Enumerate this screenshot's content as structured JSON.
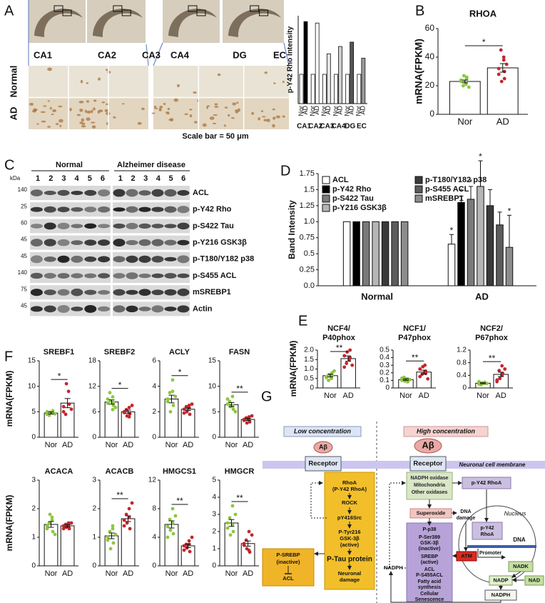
{
  "panel_labels": [
    "A",
    "B",
    "C",
    "D",
    "E",
    "F",
    "G"
  ],
  "histology": {
    "regions": [
      "CA1",
      "CA2",
      "CA3",
      "CA4",
      "DG",
      "EC"
    ],
    "conditions": [
      "Normal",
      "AD"
    ],
    "scale_bar": "Scale bar = 50 μm"
  },
  "blot": {
    "kda": "kDa",
    "groups": [
      "Normal",
      "Alzheimer disease"
    ],
    "lanes": [
      1,
      2,
      3,
      4,
      5,
      6
    ],
    "markers": [
      140,
      25,
      60,
      45,
      45,
      140,
      75,
      45
    ],
    "proteins": [
      "ACL",
      "p-Y42 Rho",
      "p-S422 Tau",
      "p-Y216 GSK3β",
      "p-T180/Y182 p38",
      "p-S455 ACL",
      "mSREBP1",
      "Actin"
    ]
  },
  "chart_data": [
    {
      "type": "grouped_bar",
      "ylabel": "p-Y42 Rho Intensity",
      "categories": [
        "CA1",
        "CA2",
        "CA3",
        "CA4",
        "DG",
        "EC"
      ],
      "ylim": [
        0,
        3
      ],
      "series": [
        {
          "name": "Nor",
          "color": "#ffffff",
          "values": [
            1,
            1,
            1,
            1,
            1,
            1
          ]
        },
        {
          "name": "AD",
          "colors": [
            "#000000",
            "#ffffff",
            "#e6e6e6",
            "#cfcfcf",
            "#555555",
            "#9a9a9a"
          ],
          "values": [
            2.8,
            2.75,
            1.7,
            1.95,
            2.1,
            1.55
          ]
        }
      ]
    },
    {
      "type": "bar_scatter",
      "title": [
        "RHOA"
      ],
      "ylabel": "mRNA(FPKM)",
      "categories": [
        "Nor",
        "AD"
      ],
      "values": [
        23,
        32.5
      ],
      "errors": [
        1.0,
        3.0
      ],
      "sig": "*",
      "ylim": [
        0,
        60
      ],
      "yticks": [
        0,
        20,
        40,
        60
      ],
      "point_colors": [
        "#8dc63f",
        "#c1272d"
      ],
      "points": [
        [
          23,
          22,
          25,
          20,
          27,
          19,
          24,
          21,
          26
        ],
        [
          32,
          40,
          25,
          45,
          23,
          35,
          28,
          38,
          30
        ]
      ]
    },
    {
      "type": "legend_bar",
      "ylabel": "Band Intensity",
      "categories": [
        "Normal",
        "AD"
      ],
      "ylim": [
        0,
        1.75
      ],
      "yticks": [
        {
          "value": 0,
          "label": "0.0"
        },
        0.25,
        0.5,
        0.75,
        {
          "value": 1,
          "label": "1.0"
        },
        1.25,
        1.5,
        1.75
      ],
      "series": [
        {
          "name": "ACL",
          "color": "#ffffff",
          "values": [
            1,
            0.65
          ],
          "errors": [
            null,
            0.15
          ],
          "sig": "*"
        },
        {
          "name": "p-Y42 Rho",
          "color": "#000000",
          "values": [
            1,
            1.3
          ],
          "errors": [
            null,
            0.1
          ],
          "sig": "*"
        },
        {
          "name": "p-S422 Tau",
          "color": "#7a7a7a",
          "values": [
            1,
            1.35
          ],
          "errors": [
            null,
            0.2
          ],
          "sig": "*"
        },
        {
          "name": "p-Y216 GSK3β",
          "color": "#b5b5b5",
          "values": [
            1,
            1.55
          ],
          "errors": [
            null,
            0.4
          ],
          "sig": "*"
        },
        {
          "name": "p-T180/Y182 p38",
          "color": "#3a3a3a",
          "values": [
            1,
            1.25
          ],
          "errors": [
            null,
            0.25
          ]
        },
        {
          "name": "p-S455 ACL",
          "color": "#5c5c5c",
          "values": [
            1,
            0.95
          ],
          "errors": [
            null,
            0.2
          ]
        },
        {
          "name": "mSREBP1",
          "color": "#8c8c8c",
          "values": [
            1,
            0.6
          ],
          "errors": [
            null,
            0.5
          ],
          "sig": "*"
        }
      ]
    },
    {
      "type": "bar_scatter",
      "title": [
        "NCF4/",
        "P40phox"
      ],
      "ylabel": "mRNA(FPKM)",
      "categories": [
        "Nor",
        "AD"
      ],
      "values": [
        0.65,
        1.55
      ],
      "errors": [
        0.07,
        0.14
      ],
      "sig": "**",
      "ylim": [
        0,
        2
      ],
      "yticks": [
        0,
        0.5,
        {
          "value": 1,
          "label": "1.0"
        },
        1.5,
        {
          "value": 2,
          "label": "2.0"
        }
      ],
      "point_colors": [
        "#8dc63f",
        "#c1272d"
      ],
      "points": [
        [
          0.6,
          0.5,
          0.8,
          0.4,
          0.7,
          0.9,
          0.55,
          0.75,
          0.65
        ],
        [
          1.1,
          1.6,
          2.0,
          1.3,
          1.9,
          1.2,
          1.7,
          1.5,
          1.6
        ]
      ]
    },
    {
      "type": "bar_scatter",
      "title": [
        "NCF1/",
        "P47phox"
      ],
      "categories": [
        "Nor",
        "AD"
      ],
      "values": [
        0.11,
        0.21
      ],
      "errors": [
        0.01,
        0.025
      ],
      "sig": "**",
      "ylim": [
        0,
        0.5
      ],
      "yticks": [
        0,
        0.1,
        0.2,
        0.3,
        0.4,
        0.5
      ],
      "point_colors": [
        "#8dc63f",
        "#c1272d"
      ],
      "points": [
        [
          0.1,
          0.12,
          0.08,
          0.14,
          0.09,
          0.11,
          0.13,
          0.1,
          0.12
        ],
        [
          0.15,
          0.3,
          0.22,
          0.18,
          0.28,
          0.12,
          0.25,
          0.2,
          0.19
        ]
      ]
    },
    {
      "type": "bar_scatter",
      "title": [
        "NCF2/",
        "P67phox"
      ],
      "categories": [
        "Nor",
        "AD"
      ],
      "values": [
        0.15,
        0.43
      ],
      "errors": [
        0.015,
        0.07
      ],
      "sig": "**",
      "ylim": [
        0,
        1.2
      ],
      "yticks": [
        0,
        0.4,
        0.8,
        1.2
      ],
      "point_colors": [
        "#8dc63f",
        "#c1272d"
      ],
      "points": [
        [
          0.12,
          0.15,
          0.18,
          0.1,
          0.16,
          0.14,
          0.2,
          0.15
        ],
        [
          0.2,
          0.7,
          0.45,
          0.55,
          0.3,
          0.6,
          0.25,
          0.4
        ]
      ]
    },
    {
      "type": "bar_scatter",
      "title": [
        "SREBF1"
      ],
      "ylabel": "mRNA(FPKM)",
      "categories": [
        "Nor",
        "AD"
      ],
      "values": [
        4.75,
        6.7
      ],
      "errors": [
        0.2,
        0.9
      ],
      "sig": "*",
      "ylim": [
        0,
        15
      ],
      "yticks": [
        0,
        5,
        10,
        15
      ],
      "point_colors": [
        "#8dc63f",
        "#c1272d"
      ],
      "points": [
        [
          4.5,
          4.8,
          5.2,
          4.3,
          4.9,
          4.6,
          5.0
        ],
        [
          5.0,
          9.0,
          6.5,
          4.5,
          10.5,
          5.5,
          6.0
        ]
      ]
    },
    {
      "type": "bar_scatter",
      "title": [
        "SREBF2"
      ],
      "categories": [
        "Nor",
        "AD"
      ],
      "values": [
        8.3,
        6.0
      ],
      "errors": [
        0.5,
        0.4
      ],
      "sig": "*",
      "ylim": [
        0,
        18
      ],
      "yticks": [
        0,
        6,
        12,
        18
      ],
      "point_colors": [
        "#8dc63f",
        "#c1272d"
      ],
      "points": [
        [
          8.0,
          9.5,
          7.5,
          10.5,
          8.5,
          7.0,
          9.0,
          6.5,
          8.2
        ],
        [
          6.0,
          7.0,
          5.5,
          6.5,
          5.0,
          7.5,
          5.8,
          4.8
        ]
      ]
    },
    {
      "type": "bar_scatter",
      "title": [
        "ACLY"
      ],
      "categories": [
        "Nor",
        "AD"
      ],
      "values": [
        3.0,
        2.2
      ],
      "errors": [
        0.3,
        0.1
      ],
      "sig": "*",
      "ylim": [
        0,
        6
      ],
      "yticks": [
        0,
        2,
        4,
        6
      ],
      "point_colors": [
        "#8dc63f",
        "#c1272d"
      ],
      "points": [
        [
          3.0,
          4.5,
          2.5,
          3.5,
          2.0,
          3.2,
          2.8,
          3.6
        ],
        [
          2.2,
          2.5,
          1.8,
          2.4,
          2.0,
          2.6,
          1.9,
          2.3
        ]
      ]
    },
    {
      "type": "bar_scatter",
      "title": [
        "FASN"
      ],
      "categories": [
        "Nor",
        "AD"
      ],
      "values": [
        6.4,
        3.5
      ],
      "errors": [
        0.4,
        0.2
      ],
      "sig": "**",
      "ylim": [
        0,
        15
      ],
      "yticks": [
        0,
        5,
        10,
        15
      ],
      "point_colors": [
        "#8dc63f",
        "#c1272d"
      ],
      "points": [
        [
          6.5,
          8.0,
          5.5,
          7.0,
          6.0,
          5.0,
          7.5,
          6.2
        ],
        [
          3.5,
          4.0,
          3.0,
          3.8,
          2.8,
          4.2,
          3.3,
          3.4
        ]
      ]
    },
    {
      "type": "bar_scatter",
      "title": [
        "ACACA"
      ],
      "ylabel": "mRNA(FPKM)",
      "categories": [
        "Nor",
        "AD"
      ],
      "values": [
        1.45,
        1.4
      ],
      "errors": [
        0.1,
        0.04
      ],
      "ylim": [
        0,
        3
      ],
      "yticks": [
        0,
        1,
        2,
        3
      ],
      "point_colors": [
        "#8dc63f",
        "#c1272d"
      ],
      "points": [
        [
          1.4,
          1.7,
          1.2,
          1.5,
          1.8,
          1.1,
          1.3,
          1.6
        ],
        [
          1.4,
          1.5,
          1.3,
          1.45,
          1.35,
          1.5,
          1.3,
          1.4
        ]
      ]
    },
    {
      "type": "bar_scatter",
      "title": [
        "ACACB"
      ],
      "categories": [
        "Nor",
        "AD"
      ],
      "values": [
        1.05,
        1.65
      ],
      "errors": [
        0.1,
        0.1
      ],
      "sig": "**",
      "ylim": [
        0,
        3
      ],
      "yticks": [
        0,
        1,
        2,
        3
      ],
      "point_colors": [
        "#8dc63f",
        "#c1272d"
      ],
      "points": [
        [
          1.0,
          1.4,
          0.8,
          1.2,
          0.6,
          1.1,
          0.9,
          1.3
        ],
        [
          1.6,
          2.0,
          1.3,
          1.8,
          1.5,
          2.2,
          1.4,
          1.7
        ]
      ]
    },
    {
      "type": "bar_scatter",
      "title": [
        "HMGCS1"
      ],
      "categories": [
        "Nor",
        "AD"
      ],
      "values": [
        5.8,
        2.8
      ],
      "errors": [
        0.5,
        0.25
      ],
      "sig": "**",
      "ylim": [
        0,
        12
      ],
      "yticks": [
        0,
        4,
        8,
        12
      ],
      "point_colors": [
        "#8dc63f",
        "#c1272d"
      ],
      "points": [
        [
          5.5,
          8.0,
          4.5,
          6.5,
          5.0,
          7.0,
          4.0,
          6.0
        ],
        [
          2.8,
          3.5,
          2.0,
          3.0,
          2.5,
          4.0,
          2.2,
          3.0
        ]
      ]
    },
    {
      "type": "bar_scatter",
      "title": [
        "HMGCR"
      ],
      "categories": [
        "Nor",
        "AD"
      ],
      "values": [
        2.5,
        1.3
      ],
      "errors": [
        0.2,
        0.15
      ],
      "sig": "**",
      "ylim": [
        0,
        5
      ],
      "yticks": [
        0,
        1,
        2,
        3,
        4,
        5
      ],
      "point_colors": [
        "#8dc63f",
        "#c1272d"
      ],
      "points": [
        [
          2.5,
          3.5,
          2.0,
          2.8,
          1.8,
          3.0,
          2.2,
          2.4
        ],
        [
          1.3,
          2.0,
          0.8,
          1.5,
          1.0,
          1.8,
          1.2,
          0.9
        ]
      ]
    }
  ],
  "diagram": {
    "low": {
      "title": "Low concentration",
      "abeta": "Aβ",
      "receptor": "Receptor",
      "column": [
        "RhoA",
        "(P-Y42 RhoA)",
        "ROCK",
        "pY416Src",
        "P-Tyr216",
        "GSK-3β",
        "(active)",
        "P-Tau protein",
        "Neuronal",
        "damage"
      ],
      "srebp": [
        "P-SREBP",
        "(inactive)",
        "ACL"
      ]
    },
    "high": {
      "title": "High concentration",
      "abeta": "Aβ",
      "receptor": "Receptor",
      "membrane": "Neuronal cell membrane",
      "oxidases": [
        "NADPH oxidase",
        "Mitochondria",
        "Other oxidases"
      ],
      "rhoa": "p-Y42 RhoA",
      "nucleus": "Nucleus",
      "nuc_rhoa": [
        "p-Y42",
        "RhoA"
      ],
      "dna": "DNA",
      "promoter": "Promoter",
      "nadk": "NADK",
      "superoxide": "Superoxide",
      "dna_damage": [
        "DNA",
        "damage"
      ],
      "column": [
        "P-p38",
        "P-Ser389",
        "GSK-3β",
        "(inactive)",
        "SREBP",
        "(active)",
        "ACL",
        "P-S455ACL",
        "Fatty acid",
        "synthesis",
        "Cellular",
        "Senescence"
      ],
      "atm": "ATM",
      "nadph_left": "NADPH",
      "nadp": "NADP",
      "nad": "NAD",
      "nadph": "NADPH"
    }
  }
}
